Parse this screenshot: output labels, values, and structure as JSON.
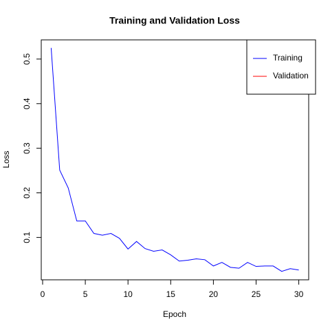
{
  "chart_data": {
    "type": "line",
    "title": "Training and Validation Loss",
    "x_label": "Epoch",
    "y_label": "Loss",
    "x": [
      1,
      2,
      3,
      4,
      5,
      6,
      7,
      8,
      9,
      10,
      11,
      12,
      13,
      14,
      15,
      16,
      17,
      18,
      19,
      20,
      21,
      22,
      23,
      24,
      25,
      26,
      27,
      28,
      29,
      30
    ],
    "series": [
      {
        "name": "Training",
        "color": "#0000ff",
        "values": [
          0.525,
          0.251,
          0.211,
          0.137,
          0.137,
          0.109,
          0.105,
          0.109,
          0.098,
          0.074,
          0.091,
          0.075,
          0.069,
          0.072,
          0.061,
          0.047,
          0.049,
          0.052,
          0.05,
          0.036,
          0.044,
          0.033,
          0.031,
          0.044,
          0.035,
          0.036,
          0.036,
          0.024,
          0.03,
          0.027
        ]
      },
      {
        "name": "Validation",
        "color": "#ff0000",
        "values": [
          null,
          null,
          null,
          null,
          null,
          null,
          null,
          null,
          null,
          null,
          null,
          null,
          null,
          null,
          null,
          null,
          null,
          null,
          null,
          null,
          null,
          null,
          null,
          null,
          null,
          null,
          null,
          null,
          null,
          null
        ]
      }
    ],
    "xlim": [
      -0.16,
      31.16
    ],
    "xticks": [
      0,
      5,
      10,
      15,
      20,
      25,
      30
    ],
    "ylim": [
      0.005,
      0.543
    ],
    "yticks": [
      0.1,
      0.2,
      0.3,
      0.4,
      0.5
    ],
    "legend": "topright"
  }
}
